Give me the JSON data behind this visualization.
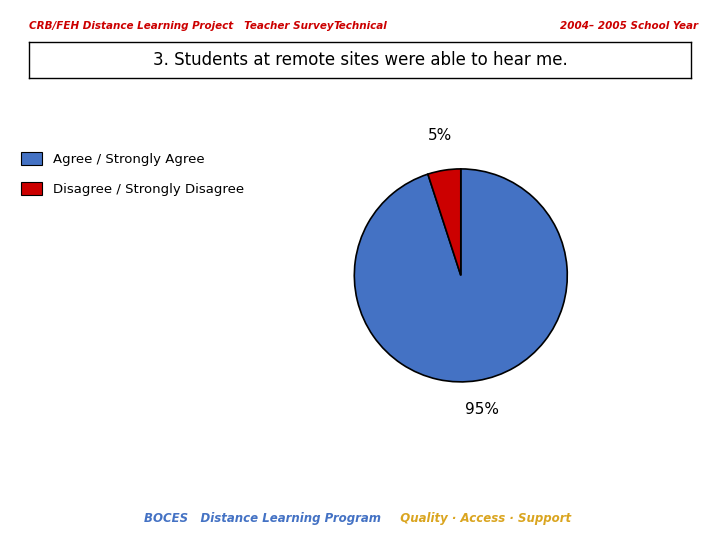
{
  "header_left": "CRB/FEH Distance Learning Project   Teacher Survey",
  "header_center": "Technical",
  "header_right": "2004– 2005 School Year",
  "title_box": "3. Students at remote sites were able to hear me.",
  "slices": [
    95,
    5
  ],
  "slice_labels": [
    "95%",
    "5%"
  ],
  "slice_colors": [
    "#4472C4",
    "#CC0000"
  ],
  "legend_labels": [
    "Agree / Strongly Agree",
    "Disagree / Strongly Disagree"
  ],
  "footer_blue": "BOCES   Distance Learning Program",
  "footer_gold": "  Quality · Access · Support",
  "header_color": "#CC0000",
  "footer_blue_color": "#4472C4",
  "footer_gold_color": "#DAA520",
  "background_color": "#FFFFFF"
}
